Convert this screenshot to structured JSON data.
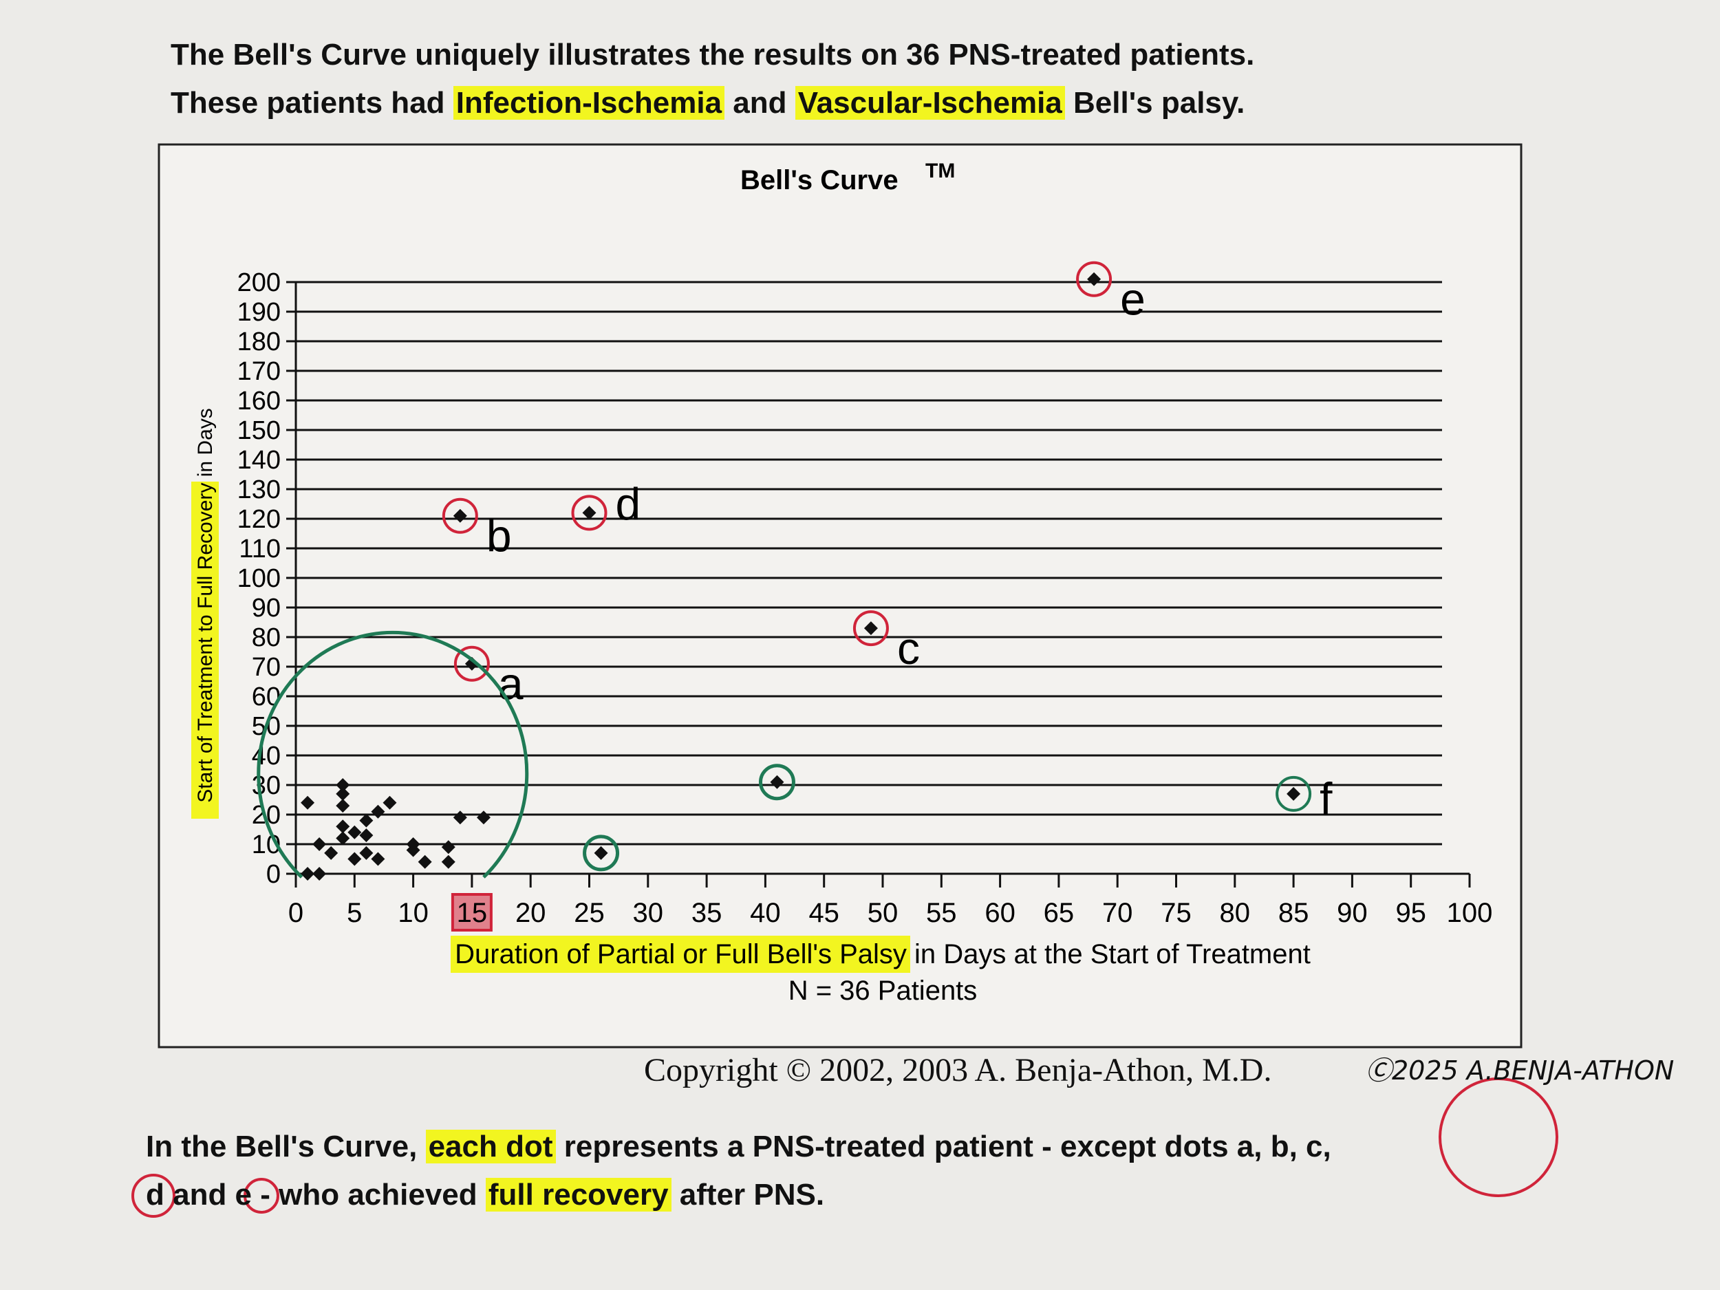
{
  "header": {
    "lines": [
      [
        {
          "text": "The Bell's Curve uniquely illustrates the results on 36 PNS-treated patients.",
          "hl": false
        }
      ],
      [
        {
          "text": "These patients had ",
          "hl": false
        },
        {
          "text": "Infection-Ischemia",
          "hl": true
        },
        {
          "text": " and ",
          "hl": false
        },
        {
          "text": "Vascular-Ischemia",
          "hl": true
        },
        {
          "text": " Bell's palsy.",
          "hl": false
        }
      ]
    ]
  },
  "chart_data": {
    "type": "scatter",
    "title": "Bell's Curve",
    "title_mark": "TM",
    "xlabel_highlighted": "Duration of Partial or Full Bell's Palsy",
    "xlabel_rest": " in Days at the Start of Treatment",
    "subtitle": "N = 36 Patients",
    "ylabel_highlighted": "Start of Treatment to Full Recovery",
    "ylabel_rest": " in Days",
    "xlim": [
      0,
      100
    ],
    "ylim": [
      0,
      200
    ],
    "xticks": [
      0,
      5,
      10,
      15,
      20,
      25,
      30,
      35,
      40,
      45,
      50,
      55,
      60,
      65,
      70,
      75,
      80,
      85,
      90,
      95,
      100
    ],
    "yticks": [
      0,
      10,
      20,
      30,
      40,
      50,
      60,
      70,
      80,
      90,
      100,
      110,
      120,
      130,
      140,
      150,
      160,
      170,
      180,
      190,
      200
    ],
    "grid": "horizontal",
    "highlighted_xtick": 15,
    "points": [
      [
        1,
        0
      ],
      [
        2,
        0
      ],
      [
        1,
        24
      ],
      [
        4,
        30
      ],
      [
        4,
        27
      ],
      [
        4,
        23
      ],
      [
        2,
        10
      ],
      [
        3,
        7
      ],
      [
        4,
        16
      ],
      [
        4,
        12
      ],
      [
        5,
        14
      ],
      [
        5,
        5
      ],
      [
        6,
        18
      ],
      [
        6,
        13
      ],
      [
        6,
        7
      ],
      [
        7,
        5
      ],
      [
        7,
        21
      ],
      [
        8,
        24
      ],
      [
        10,
        10
      ],
      [
        10,
        8
      ],
      [
        11,
        4
      ],
      [
        13,
        9
      ],
      [
        13,
        4
      ],
      [
        14,
        19
      ],
      [
        16,
        19
      ],
      [
        26,
        7
      ],
      [
        41,
        31
      ]
    ],
    "labeled_points": [
      {
        "label": "a",
        "x": 15,
        "y": 71,
        "circle": "red"
      },
      {
        "label": "b",
        "x": 14,
        "y": 121,
        "circle": "red"
      },
      {
        "label": "c",
        "x": 49,
        "y": 83,
        "circle": "red"
      },
      {
        "label": "d",
        "x": 25,
        "y": 122,
        "circle": "red"
      },
      {
        "label": "e",
        "x": 68,
        "y": 201,
        "circle": "red"
      },
      {
        "label": "f",
        "x": 85,
        "y": 27,
        "circle": "green"
      }
    ],
    "green_circled_points": [
      [
        26,
        7
      ],
      [
        41,
        31
      ]
    ],
    "colors": {
      "red": "#d0243a",
      "green": "#1f7a55",
      "highlight": "#f2f520",
      "marker": "#111111"
    }
  },
  "copyright": "Copyright © 2002, 2003 A. Benja-Athon, M.D.",
  "handwritten": "Ⓒ2025 A.BENJA-ATHON",
  "footer": {
    "lines": [
      [
        {
          "text": "In the Bell's Curve, ",
          "hl": false
        },
        {
          "text": "each dot",
          "hl": true
        },
        {
          "text": " represents a PNS-treated patient - except dots a, b, c,",
          "hl": false
        }
      ],
      [
        {
          "text": "d and e - who achieved ",
          "hl": false
        },
        {
          "text": "full recovery",
          "hl": true
        },
        {
          "text": " after PNS.",
          "hl": false
        }
      ]
    ]
  }
}
